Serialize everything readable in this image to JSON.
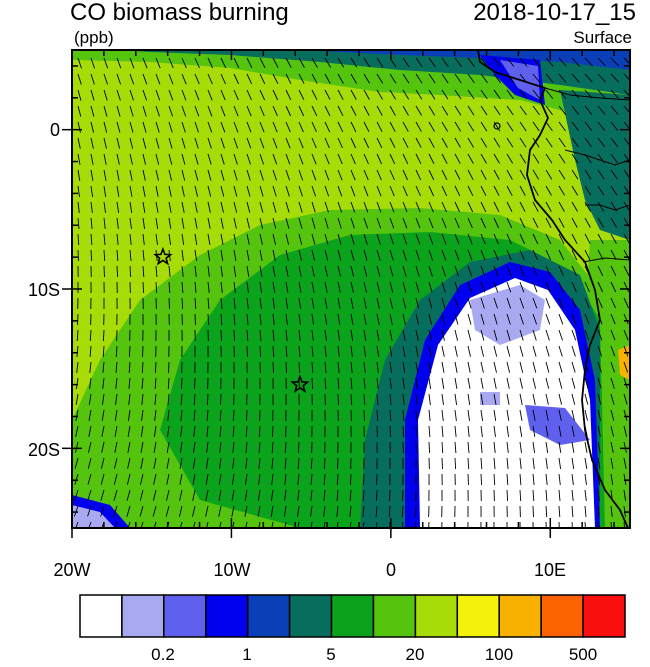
{
  "header": {
    "title": "CO biomass burning",
    "units": "(ppb)",
    "datetime": "2018-10-17_15",
    "level": "Surface"
  },
  "map": {
    "lat_ticks": [
      "0",
      "10S",
      "20S"
    ],
    "lon_ticks": [
      "20W",
      "10W",
      "0",
      "10E"
    ],
    "lon_range": [
      -20,
      15
    ],
    "lat_range": [
      -25,
      5
    ],
    "markers": [
      {
        "name": "star-marker-1",
        "lon": -14.3,
        "lat": -8.0
      },
      {
        "name": "star-marker-2",
        "lon": -5.7,
        "lat": -16.0
      }
    ]
  },
  "colorbar": {
    "colors": [
      "#ffffff",
      "#a9a9f2",
      "#6060ee",
      "#0000ee",
      "#0a3fb8",
      "#076e5d",
      "#0aa31b",
      "#55c40f",
      "#a8dc08",
      "#f2f20a",
      "#f8b100",
      "#fb6300",
      "#fa0f0f"
    ],
    "labels": [
      "0.2",
      "1",
      "5",
      "20",
      "100",
      "500"
    ]
  }
}
